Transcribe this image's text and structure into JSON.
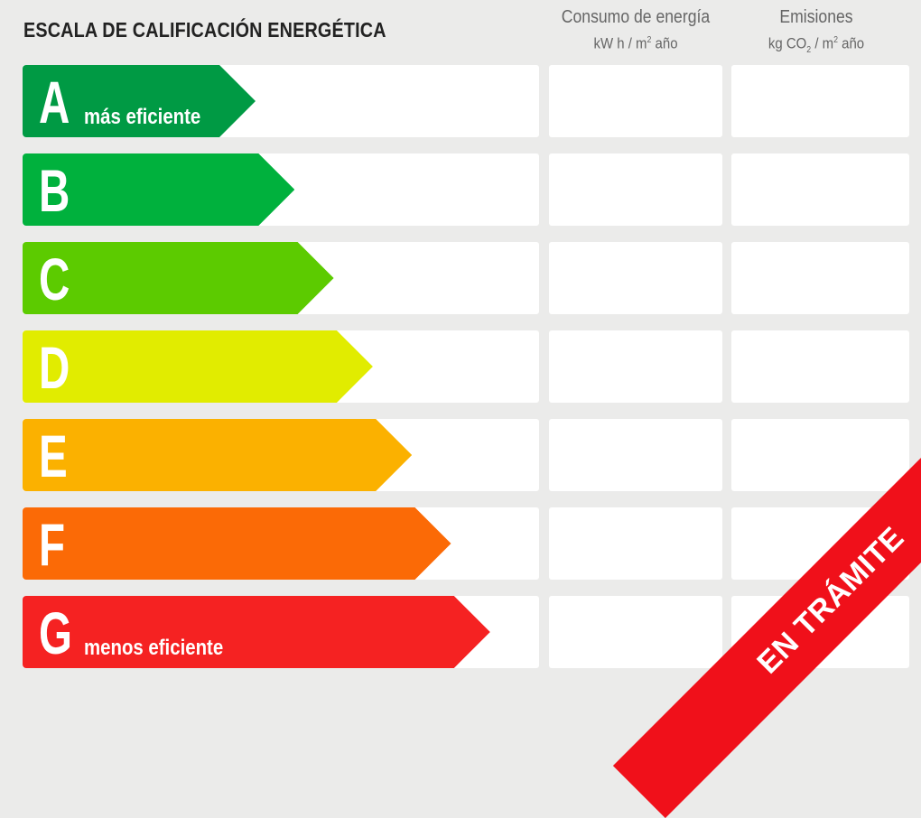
{
  "title": "ESCALA DE CALIFICACIÓN ENERGÉTICA",
  "columns": {
    "energy": {
      "label": "Consumo de energía",
      "unit_pre": "kW h / m",
      "unit_sup": "2",
      "unit_post": " año"
    },
    "emissions": {
      "label": "Emisiones",
      "unit_pre": "kg CO",
      "unit_sub": "2",
      "unit_mid": " / m",
      "unit_sup": "2",
      "unit_post": " año"
    }
  },
  "ratings": [
    {
      "letter": "A",
      "note": "más eficiente",
      "color": "#009a44"
    },
    {
      "letter": "B",
      "note": "",
      "color": "#00b13d"
    },
    {
      "letter": "C",
      "note": "",
      "color": "#5ccb00"
    },
    {
      "letter": "D",
      "note": "",
      "color": "#e1ec00"
    },
    {
      "letter": "E",
      "note": "",
      "color": "#fbb100"
    },
    {
      "letter": "F",
      "note": "",
      "color": "#fb6a06"
    },
    {
      "letter": "G",
      "note": "menos eficiente",
      "color": "#f52222"
    }
  ],
  "ribbon": {
    "text": "EN TRÁMITE",
    "color": "#f0101a"
  }
}
